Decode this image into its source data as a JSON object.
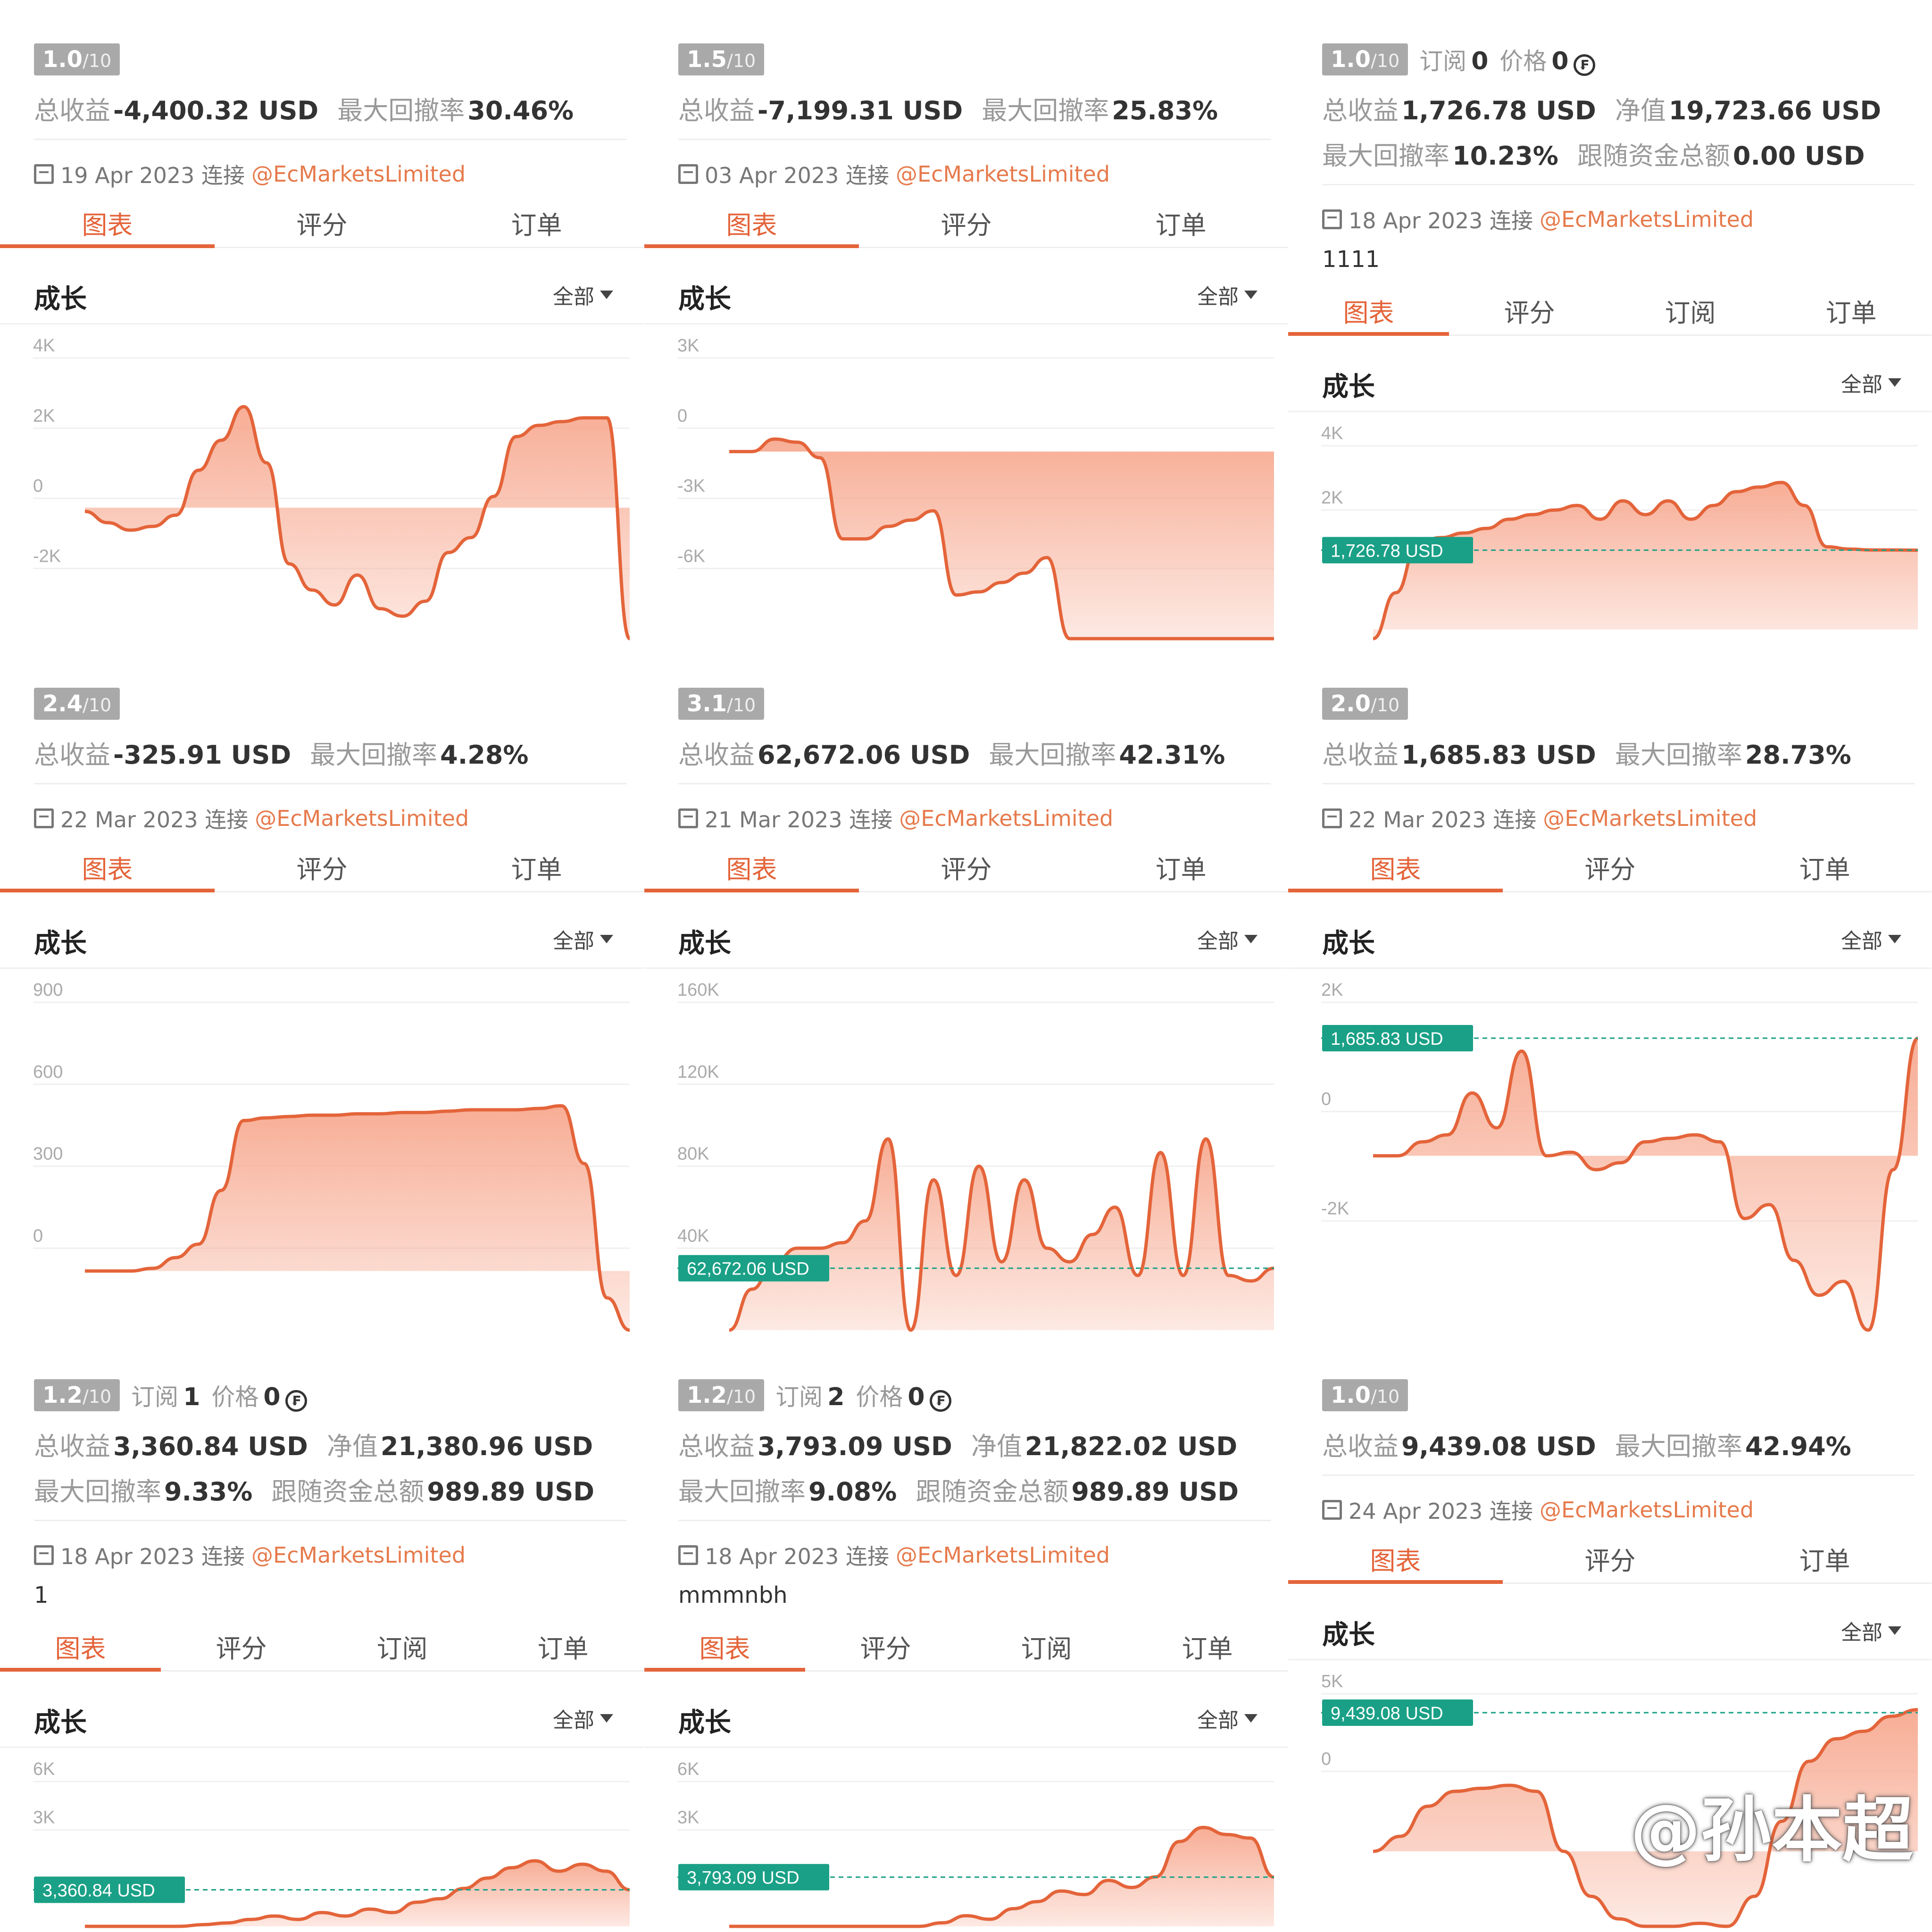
{
  "labels": {
    "tab_chart": "图表",
    "tab_rating": "评分",
    "tab_subscribe": "订阅",
    "tab_orders": "订单",
    "section": "成长",
    "filter": "全部",
    "subscribe": "订阅",
    "price": "价格",
    "total_return": "总收益",
    "max_drawdown": "最大回撤率",
    "net_value": "净值",
    "follow_total": "跟随资金总额",
    "score_denominator": "/10",
    "currency": "USD"
  },
  "watermark": "@孙本超",
  "colors": {
    "accent": "#e4643a",
    "link": "#e67a4c",
    "area": "#f7a990",
    "marker": "#1aa086",
    "badge": "#a9a9a9"
  },
  "cards": [
    {
      "id": "c1",
      "score": "1.0",
      "stats": [
        [
          {
            "label": "总收益",
            "value": "-4,400.32 USD"
          },
          {
            "label": "最大回撤率",
            "value": "30.46%"
          }
        ]
      ],
      "joined": "19 Apr 2023 连接",
      "handle": "@EcMarketsLimited",
      "tabs": [
        "图表",
        "评分",
        "订单"
      ],
      "chart_data": {
        "type": "area",
        "title": "成长",
        "yticks": [
          "4K",
          "2K",
          "0",
          "-2K"
        ],
        "ylim": [
          -3500,
          4000
        ],
        "series": [
          {
            "values": [
              -100,
              -400,
              -600,
              -500,
              -200,
              1000,
              1800,
              2700,
              1200,
              -1500,
              -2200,
              -2600,
              -1800,
              -2700,
              -2900,
              -2500,
              -1200,
              -800,
              300,
              1900,
              2200,
              2300,
              2400,
              2400,
              -3500
            ]
          }
        ]
      }
    },
    {
      "id": "c2",
      "score": "1.5",
      "stats": [
        [
          {
            "label": "总收益",
            "value": "-7,199.31 USD"
          },
          {
            "label": "最大回撤率",
            "value": "25.83%"
          }
        ]
      ],
      "joined": "03 Apr 2023 连接",
      "handle": "@EcMarketsLimited",
      "tabs": [
        "图表",
        "评分",
        "订单"
      ],
      "chart_data": {
        "type": "area",
        "title": "成长",
        "yticks": [
          "3K",
          "0",
          "-3K",
          "-6K"
        ],
        "ylim": [
          -6000,
          3000
        ],
        "series": [
          {
            "values": [
              0,
              0,
              400,
              300,
              -200,
              -2800,
              -2800,
              -2400,
              -2200,
              -1900,
              -4600,
              -4500,
              -4200,
              -3900,
              -3400,
              -6000,
              -6000,
              -6000,
              -6000,
              -6000,
              -6000,
              -6000,
              -6000,
              -6000,
              -6000
            ]
          }
        ]
      }
    },
    {
      "id": "c3",
      "score": "1.0",
      "subs": "0",
      "price": "0",
      "stats": [
        [
          {
            "label": "总收益",
            "value": "1,726.78 USD"
          },
          {
            "label": "净值",
            "value": "19,723.66 USD"
          }
        ],
        [
          {
            "label": "最大回撤率",
            "value": "10.23%"
          },
          {
            "label": "跟随资金总额",
            "value": "0.00 USD"
          }
        ]
      ],
      "joined": "18 Apr 2023 连接",
      "handle": "@EcMarketsLimited",
      "note": "1111",
      "tabs": [
        "图表",
        "评分",
        "订阅",
        "订单"
      ],
      "chart_data": {
        "type": "area",
        "title": "成长",
        "yticks": [
          "4K",
          "2K"
        ],
        "ylim": [
          -200,
          4000
        ],
        "marker": {
          "value": 1726.78,
          "label": "1,726.78 USD"
        },
        "series": [
          {
            "values": [
              -200,
              800,
              1900,
              2000,
              2100,
              2200,
              2400,
              2500,
              2600,
              2700,
              2400,
              2800,
              2500,
              2800,
              2400,
              2700,
              3000,
              3100,
              3200,
              2700,
              1800,
              1750,
              1730,
              1730,
              1726
            ]
          }
        ]
      }
    },
    {
      "id": "c4",
      "score": "2.4",
      "stats": [
        [
          {
            "label": "总收益",
            "value": "-325.91 USD"
          },
          {
            "label": "最大回撤率",
            "value": "4.28%"
          }
        ]
      ],
      "joined": "22 Mar 2023 连接",
      "handle": "@EcMarketsLimited",
      "tabs": [
        "图表",
        "评分",
        "订单"
      ],
      "chart_data": {
        "type": "area",
        "title": "成长",
        "yticks": [
          "900",
          "600",
          "300",
          "0"
        ],
        "ylim": [
          -220,
          1000
        ],
        "series": [
          {
            "values": [
              0,
              0,
              0,
              10,
              50,
              100,
              300,
              560,
              570,
              575,
              580,
              580,
              585,
              585,
              590,
              590,
              595,
              600,
              600,
              600,
              605,
              615,
              400,
              -100,
              -220
            ]
          }
        ]
      }
    },
    {
      "id": "c5",
      "score": "3.1",
      "stats": [
        [
          {
            "label": "总收益",
            "value": "62,672.06 USD"
          },
          {
            "label": "最大回撤率",
            "value": "42.31%"
          }
        ]
      ],
      "joined": "21 Mar 2023 连接",
      "handle": "@EcMarketsLimited",
      "tabs": [
        "图表",
        "评分",
        "订单"
      ],
      "chart_data": {
        "type": "area",
        "title": "成长",
        "yticks": [
          "160K",
          "120K",
          "80K",
          "40K"
        ],
        "ylim": [
          40000,
          160000
        ],
        "marker": {
          "value": 62672.06,
          "label": "62,672.06 USD"
        },
        "series": [
          {
            "values": [
              40000,
              55000,
              65000,
              70000,
              70000,
              72000,
              80000,
              110000,
              40000,
              95000,
              60000,
              100000,
              65000,
              95000,
              70000,
              65000,
              75000,
              85000,
              60000,
              105000,
              60000,
              110000,
              60000,
              58000,
              62672
            ]
          }
        ]
      }
    },
    {
      "id": "c6",
      "score": "2.0",
      "stats": [
        [
          {
            "label": "总收益",
            "value": "1,685.83 USD"
          },
          {
            "label": "最大回撤率",
            "value": "28.73%"
          }
        ]
      ],
      "joined": "22 Mar 2023 连接",
      "handle": "@EcMarketsLimited",
      "tabs": [
        "图表",
        "评分",
        "订单"
      ],
      "chart_data": {
        "type": "area",
        "title": "成长",
        "yticks": [
          "2K",
          "0",
          "-2K"
        ],
        "ylim": [
          -2500,
          2200
        ],
        "marker": {
          "value": 1685.83,
          "label": "1,685.83 USD"
        },
        "series": [
          {
            "values": [
              0,
              0,
              200,
              300,
              900,
              400,
              1500,
              0,
              50,
              -200,
              -100,
              200,
              250,
              300,
              200,
              -900,
              -700,
              -1500,
              -2000,
              -1800,
              -2500,
              -200,
              1685
            ]
          }
        ]
      }
    },
    {
      "id": "c7",
      "score": "1.2",
      "subs": "1",
      "price": "0",
      "stats": [
        [
          {
            "label": "总收益",
            "value": "3,360.84 USD"
          },
          {
            "label": "净值",
            "value": "21,380.96 USD"
          }
        ],
        [
          {
            "label": "最大回撤率",
            "value": "9.33%"
          },
          {
            "label": "跟随资金总额",
            "value": "989.89 USD"
          }
        ]
      ],
      "joined": "18 Apr 2023 连接",
      "handle": "@EcMarketsLimited",
      "note": "1",
      "tabs": [
        "图表",
        "评分",
        "订阅",
        "订单"
      ],
      "chart_data": {
        "type": "area",
        "title": "成长",
        "yticks": [
          "6K",
          "3K"
        ],
        "ylim": [
          2300,
          6500
        ],
        "marker": {
          "value": 3360.84,
          "label": "3,360.84 USD"
        },
        "series": [
          {
            "values": [
              2300,
              2300,
              2300,
              2300,
              2300,
              2350,
              2400,
              2500,
              2600,
              2500,
              2700,
              2600,
              2800,
              2700,
              3000,
              3100,
              3400,
              3700,
              4000,
              4200,
              3900,
              4100,
              3900,
              3360
            ]
          }
        ]
      }
    },
    {
      "id": "c8",
      "score": "1.2",
      "subs": "2",
      "price": "0",
      "stats": [
        [
          {
            "label": "总收益",
            "value": "3,793.09 USD"
          },
          {
            "label": "净值",
            "value": "21,822.02 USD"
          }
        ],
        [
          {
            "label": "最大回撤率",
            "value": "9.08%"
          },
          {
            "label": "跟随资金总额",
            "value": "989.89 USD"
          }
        ]
      ],
      "joined": "18 Apr 2023 连接",
      "handle": "@EcMarketsLimited",
      "note": "mmmnbh",
      "tabs": [
        "图表",
        "评分",
        "订阅",
        "订单"
      ],
      "chart_data": {
        "type": "area",
        "title": "成长",
        "yticks": [
          "6K",
          "3K"
        ],
        "ylim": [
          2400,
          6500
        ],
        "marker": {
          "value": 3793.09,
          "label": "3,793.09 USD"
        },
        "series": [
          {
            "values": [
              2400,
              2400,
              2400,
              2400,
              2400,
              2400,
              2400,
              2400,
              2400,
              2500,
              2700,
              2600,
              2900,
              3100,
              3400,
              3300,
              3700,
              3500,
              3800,
              4800,
              5200,
              5000,
              4900,
              3793
            ]
          }
        ]
      }
    },
    {
      "id": "c9",
      "score": "1.0",
      "stats": [
        [
          {
            "label": "总收益",
            "value": "9,439.08 USD"
          },
          {
            "label": "最大回撤率",
            "value": "42.94%"
          }
        ]
      ],
      "joined": "24 Apr 2023 连接",
      "handle": "@EcMarketsLimited",
      "tabs": [
        "图表",
        "评分",
        "订单"
      ],
      "chart_data": {
        "type": "area",
        "title": "成长",
        "yticks": [
          "5K",
          "0"
        ],
        "ylim": [
          -5000,
          10500
        ],
        "marker": {
          "value": 9439.08,
          "label": "9,439.08 USD"
        },
        "series": [
          {
            "values": [
              0,
              1000,
              3000,
              4000,
              4200,
              4400,
              4000,
              0,
              -3000,
              -4500,
              -5000,
              -5000,
              -4800,
              -5000,
              -3000,
              2000,
              6000,
              7500,
              8000,
              9000,
              9439
            ]
          }
        ]
      }
    }
  ]
}
